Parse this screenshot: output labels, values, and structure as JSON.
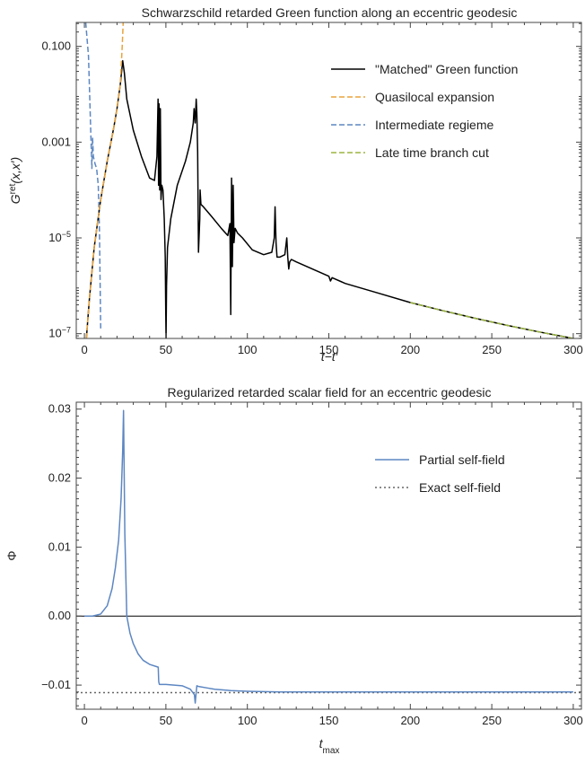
{
  "chart_data": [
    {
      "type": "line",
      "title": "Schwarzschild retarded Green function along an eccentric geodesic",
      "xlabel": "t−t′",
      "ylabel": {
        "base": "G",
        "sup": "ret",
        "args": "(x,x′)"
      },
      "xlim": [
        -5,
        305
      ],
      "ylim_log10": [
        -7.1,
        -0.5
      ],
      "y_scale": "log",
      "grid": false,
      "legend_position": "top-right",
      "x_ticks": [
        0,
        50,
        100,
        150,
        200,
        250,
        300
      ],
      "x_tick_labels": [
        "0",
        "50",
        "100",
        "150",
        "200",
        "250",
        "300"
      ],
      "y_ticks_log10": [
        -7,
        -5,
        -3,
        -1
      ],
      "y_tick_labels": [
        {
          "mantissa": "10",
          "exp": "−7"
        },
        {
          "mantissa": "10",
          "exp": "−5"
        },
        {
          "mantissa": "",
          "exp": "",
          "text": "0.001"
        },
        {
          "mantissa": "",
          "exp": "",
          "text": "0.100"
        }
      ],
      "series": [
        {
          "name": "\"Matched\" Green function",
          "color": "#000000",
          "dash": "solid",
          "x": [
            1.2,
            3,
            6,
            10,
            14,
            18,
            20,
            22,
            23.5,
            24.5,
            26,
            30,
            35,
            40,
            43,
            44.5,
            45.2,
            45.5,
            45.8,
            46.2,
            46.6,
            47,
            47.5,
            48.2,
            49,
            49.6,
            49.9,
            50.1,
            50.4,
            51,
            53,
            57,
            62,
            65,
            66.8,
            67.3,
            68,
            68.6,
            69,
            69.5,
            70,
            70.8,
            71,
            71.5,
            73,
            78,
            84,
            88,
            89.3,
            89.8,
            90.3,
            90.8,
            91.3,
            91.8,
            92.5,
            94,
            97,
            103,
            110,
            115,
            116.5,
            117,
            117.6,
            118.2,
            120,
            123,
            124.2,
            124.8,
            125.4,
            126,
            127,
            130,
            140,
            150,
            151,
            152,
            160,
            180,
            200,
            220,
            240,
            260,
            280,
            300,
            305
          ],
          "y_log10": [
            -7.1,
            -6.3,
            -5.2,
            -4.2,
            -3.4,
            -2.7,
            -2.3,
            -1.8,
            -1.3,
            -1.55,
            -2.1,
            -2.75,
            -3.3,
            -3.75,
            -3.8,
            -3.3,
            -2.1,
            -3.9,
            -2.2,
            -4.0,
            -2.3,
            -4.2,
            -3.9,
            -4.0,
            -4.6,
            -5.4,
            -6.5,
            -7.1,
            -6.0,
            -5.2,
            -4.6,
            -3.9,
            -3.4,
            -3.0,
            -2.6,
            -2.3,
            -2.6,
            -2.1,
            -2.4,
            -3.2,
            -5.3,
            -4.6,
            -4.0,
            -4.3,
            -4.35,
            -4.55,
            -4.8,
            -4.95,
            -4.7,
            -6.6,
            -3.75,
            -5.6,
            -3.9,
            -5.1,
            -4.8,
            -4.9,
            -5.0,
            -5.25,
            -5.35,
            -5.3,
            -5.0,
            -4.35,
            -5.1,
            -5.4,
            -5.4,
            -5.35,
            -5.0,
            -5.4,
            -5.65,
            -5.5,
            -5.45,
            -5.5,
            -5.65,
            -5.8,
            -5.9,
            -5.83,
            -5.95,
            -6.15,
            -6.35,
            -6.52,
            -6.68,
            -6.83,
            -6.97,
            -7.1,
            -7.14
          ]
        },
        {
          "name": "Quasilocal expansion",
          "color": "#e8a33d",
          "dash": "dashed",
          "x": [
            1.2,
            3,
            6,
            10,
            14,
            18,
            20,
            22,
            23.2,
            23.8
          ],
          "y_log10": [
            -7.1,
            -6.3,
            -5.2,
            -4.2,
            -3.4,
            -2.7,
            -2.3,
            -1.8,
            -1.0,
            -0.5
          ]
        },
        {
          "name": "Intermediate regieme",
          "color": "#5d87c2",
          "dash": "dashed",
          "x": [
            0.8,
            2.5,
            4,
            4.6,
            5,
            5.5,
            6.5,
            7.5,
            8.5,
            9.2,
            10
          ],
          "y_log10": [
            -0.5,
            -1.2,
            -2.9,
            -3.55,
            -2.9,
            -3.3,
            -3.45,
            -3.55,
            -3.9,
            -4.8,
            -6.9
          ]
        },
        {
          "name": "Late time branch cut",
          "color": "#9bb540",
          "dash": "dashed",
          "x": [
            200,
            220,
            240,
            260,
            280,
            300,
            305
          ],
          "y_log10": [
            -6.35,
            -6.52,
            -6.68,
            -6.83,
            -6.97,
            -7.1,
            -7.14
          ]
        }
      ]
    },
    {
      "type": "line",
      "title": "Regularized retarded scalar field for an eccentric geodesic",
      "xlabel": {
        "base": "t",
        "sub": "max"
      },
      "ylabel": "Φ",
      "xlim": [
        -5,
        305
      ],
      "ylim": [
        -0.0135,
        0.031
      ],
      "grid": false,
      "legend_position": "top-right",
      "x_ticks": [
        0,
        50,
        100,
        150,
        200,
        250,
        300
      ],
      "x_tick_labels": [
        "0",
        "50",
        "100",
        "150",
        "200",
        "250",
        "300"
      ],
      "y_ticks": [
        -0.01,
        0,
        0.01,
        0.02,
        0.03
      ],
      "y_tick_labels": [
        "−0.01",
        "0.00",
        "0.01",
        "0.02",
        "0.03"
      ],
      "zero_line": true,
      "series": [
        {
          "name": "Partial self-field",
          "color": "#5d87c2",
          "dash": "solid",
          "x": [
            0,
            5,
            10,
            14,
            17,
            19,
            21,
            22.5,
            23.5,
            24,
            24.8,
            26,
            28,
            30,
            33,
            36,
            40,
            44,
            45.3,
            45.6,
            46,
            47,
            50,
            55,
            60,
            65,
            67.5,
            68,
            68.5,
            69,
            70,
            75,
            80,
            90,
            100,
            120,
            150,
            200,
            250,
            300
          ],
          "y": [
            0.0,
            0.0,
            0.0003,
            0.0015,
            0.004,
            0.007,
            0.011,
            0.017,
            0.024,
            0.0298,
            0.012,
            0.0,
            -0.0025,
            -0.004,
            -0.0055,
            -0.0064,
            -0.007,
            -0.0073,
            -0.0074,
            -0.0095,
            -0.0099,
            -0.0099,
            -0.0099,
            -0.01,
            -0.0101,
            -0.0106,
            -0.0114,
            -0.0126,
            -0.0113,
            -0.0101,
            -0.0102,
            -0.0104,
            -0.0106,
            -0.0108,
            -0.0109,
            -0.011,
            -0.011,
            -0.011,
            -0.011,
            -0.011
          ]
        },
        {
          "name": "Exact self-field",
          "color": "#666666",
          "dash": "dotted",
          "x": [
            -5,
            305
          ],
          "y": [
            -0.0111,
            -0.0111
          ]
        }
      ]
    }
  ]
}
